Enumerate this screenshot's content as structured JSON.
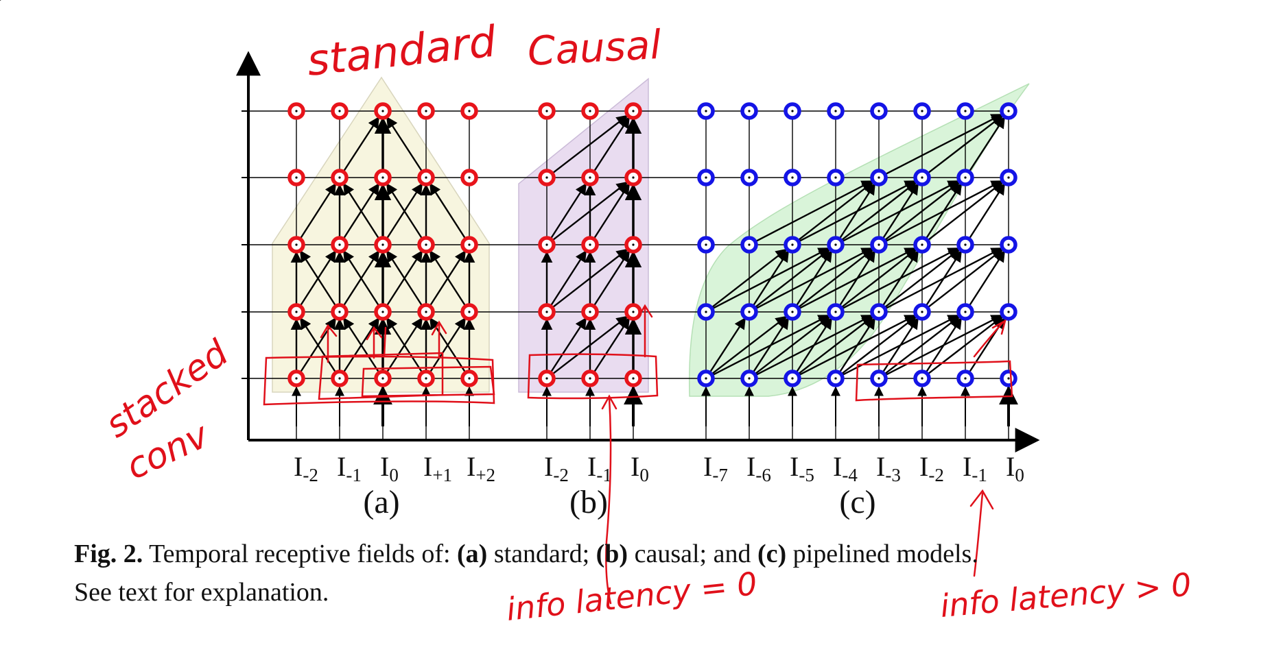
{
  "colors": {
    "red_node": "#e8141b",
    "blue_node": "#1414e6",
    "annotation": "#e0101a",
    "region_standard": "#f7f5df",
    "region_causal": "#e9dcf0",
    "region_pipelined": "#d2f2d2"
  },
  "annotations": {
    "top_a": "standard",
    "top_b": "Causal",
    "left_1": "stacked",
    "left_2": "conv",
    "bottom_b": "info latency = 0",
    "bottom_c": "info latency > 0"
  },
  "panels": [
    {
      "label": "(a)",
      "ticks": [
        {
          "main": "I",
          "sub": "-2"
        },
        {
          "main": "I",
          "sub": "-1"
        },
        {
          "main": "I",
          "sub": "0"
        },
        {
          "main": "I",
          "sub": "+1"
        },
        {
          "main": "I",
          "sub": "+2"
        }
      ]
    },
    {
      "label": "(b)",
      "ticks": [
        {
          "main": "I",
          "sub": "-2"
        },
        {
          "main": "I",
          "sub": "-1"
        },
        {
          "main": "I",
          "sub": "0"
        }
      ]
    },
    {
      "label": "(c)",
      "ticks": [
        {
          "main": "I",
          "sub": "-7"
        },
        {
          "main": "I",
          "sub": "-6"
        },
        {
          "main": "I",
          "sub": "-5"
        },
        {
          "main": "I",
          "sub": "-4"
        },
        {
          "main": "I",
          "sub": "-3"
        },
        {
          "main": "I",
          "sub": "-2"
        },
        {
          "main": "I",
          "sub": "-1"
        },
        {
          "main": "I",
          "sub": "0"
        }
      ]
    }
  ],
  "caption": {
    "fig": "Fig. 2.",
    "t1": " Temporal receptive fields of: ",
    "a": "(a)",
    "t2": " standard; ",
    "b": "(b)",
    "t3": " causal; and ",
    "c": "(c)",
    "t4": " pipelined models.",
    "line2": "See text for explanation."
  }
}
